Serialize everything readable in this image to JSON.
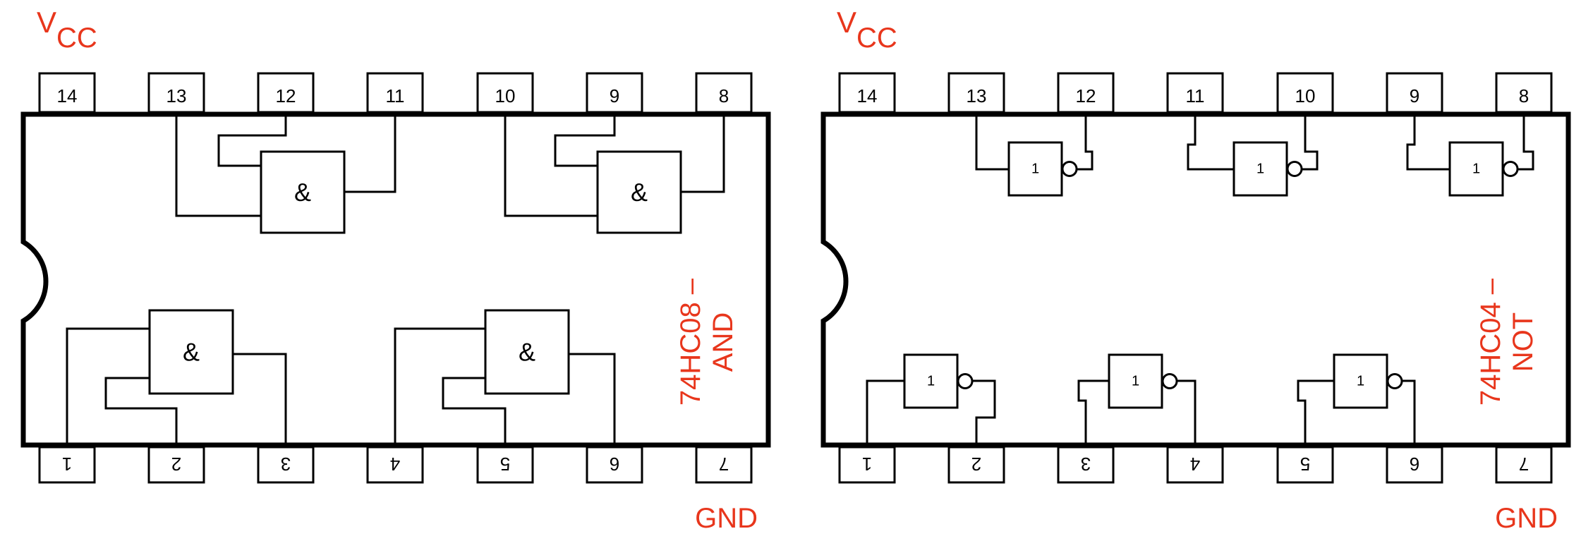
{
  "accent_color": "#e8361c",
  "line_color": "#000000",
  "chips": [
    {
      "id": "and",
      "vcc_main": "V",
      "vcc_sub": "CC",
      "gnd": "GND",
      "part_number": "74HC08 –",
      "function": "AND",
      "top_pins": [
        "14",
        "13",
        "12",
        "11",
        "10",
        "9",
        "8"
      ],
      "bottom_pins": [
        "1",
        "2",
        "3",
        "4",
        "5",
        "6",
        "7"
      ],
      "gate_symbol": "&",
      "gate_count": 4
    },
    {
      "id": "not",
      "vcc_main": "V",
      "vcc_sub": "CC",
      "gnd": "GND",
      "part_number": "74HC04 –",
      "function": "NOT",
      "top_pins": [
        "14",
        "13",
        "12",
        "11",
        "10",
        "9",
        "8"
      ],
      "bottom_pins": [
        "1",
        "2",
        "3",
        "4",
        "5",
        "6",
        "7"
      ],
      "gate_symbol": "1",
      "gate_count": 6
    }
  ]
}
